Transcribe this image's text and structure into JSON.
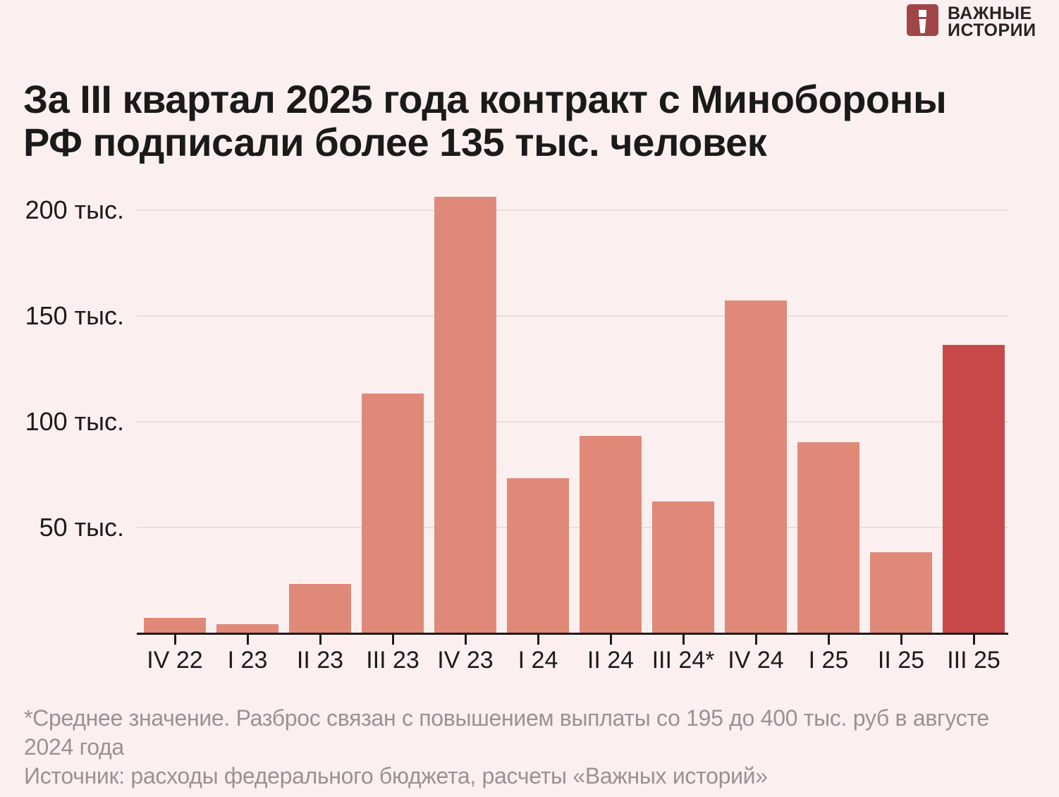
{
  "logo": {
    "line1": "ВАЖНЫЕ",
    "line2": "ИСТОРИИ",
    "mark_color": "#a04648"
  },
  "title": {
    "line1": "За III квартал 2025 года контракт с Минобороны",
    "line2": "РФ подписали более 135 тыс. человек"
  },
  "chart_data": {
    "type": "bar",
    "title": "За III квартал 2025 года контракт с Минобороны РФ подписали более 135 тыс. человек",
    "categories": [
      "IV 22",
      "I 23",
      "II 23",
      "III 23",
      "IV 23",
      "I 24",
      "II 24",
      "III 24*",
      "IV 24",
      "I 25",
      "II 25",
      "III 25"
    ],
    "values": [
      7,
      4,
      23,
      113,
      206,
      73,
      93,
      62,
      157,
      90,
      38,
      136
    ],
    "unit": "тыс. человек",
    "xlabel": "",
    "ylabel": "",
    "ylim": [
      0,
      210
    ],
    "yticks": [
      {
        "value": 50,
        "label": "50 тыс."
      },
      {
        "value": 100,
        "label": "100 тыс."
      },
      {
        "value": 150,
        "label": "150 тыс."
      },
      {
        "value": 200,
        "label": "200 тыс."
      }
    ],
    "grid": true,
    "legend": "none",
    "bar_color": "#e08979",
    "highlight_color": "#c84749",
    "highlight_index": 11
  },
  "footnote": {
    "lines": [
      "*Среднее значение. Разброс связан с повышением выплаты со 195 до 400 тыс. руб в августе",
      "2024 года",
      "Источник: расходы федерального бюджета, расчеты «Важных историй»"
    ]
  }
}
